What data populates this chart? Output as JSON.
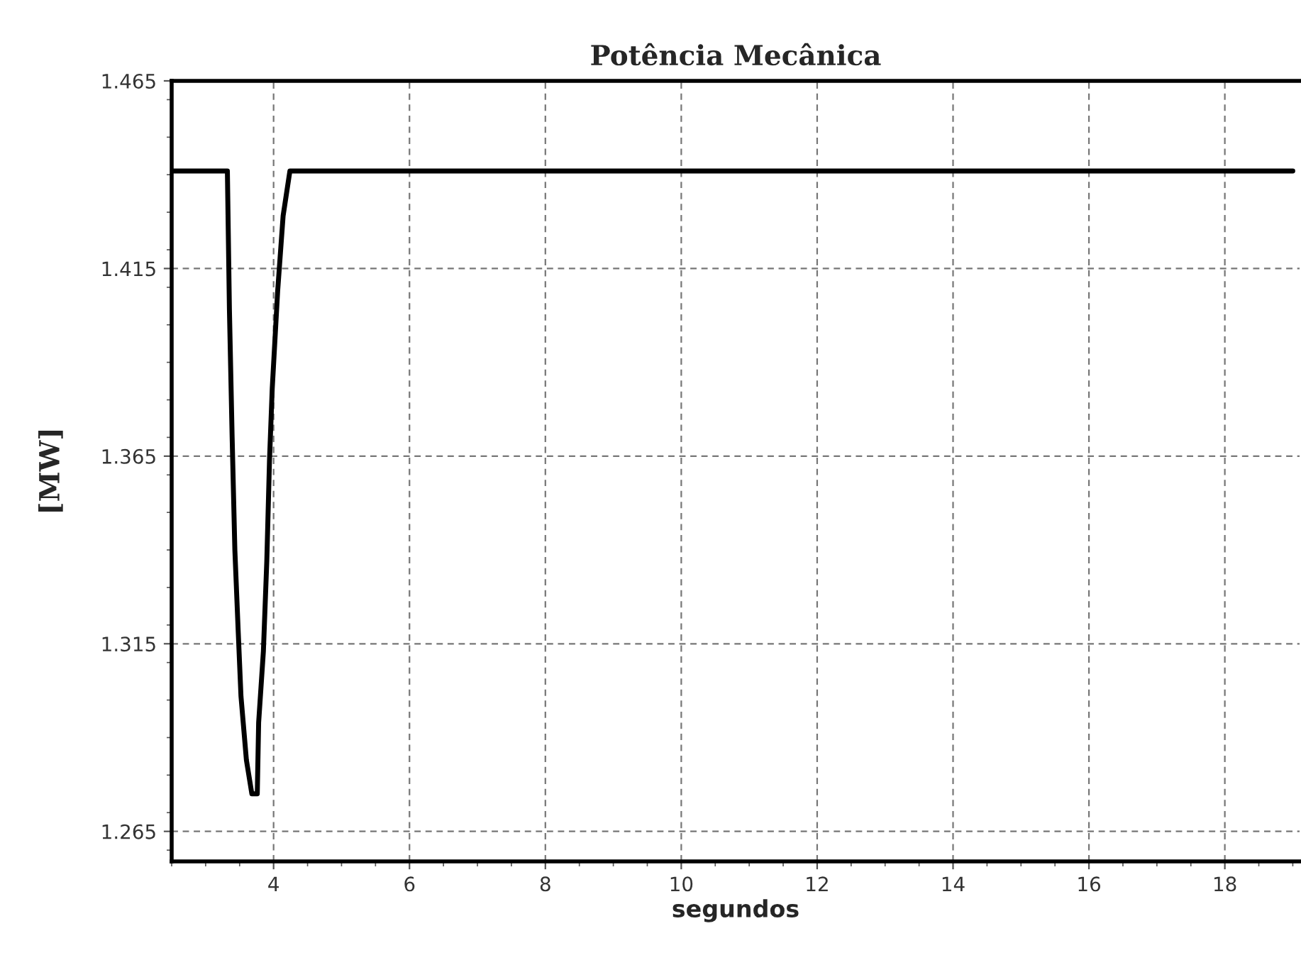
{
  "chart_data": {
    "type": "line",
    "title": "Potência Mecânica",
    "xlabel": "segundos",
    "ylabel": "[MW]",
    "series": [
      {
        "color": "#000000",
        "x": [
          2.5,
          3.32,
          3.35,
          3.39,
          3.43,
          3.48,
          3.52,
          3.6,
          3.68,
          3.76,
          3.78,
          3.85,
          3.9,
          3.94,
          3.98,
          4.06,
          4.14,
          4.24,
          19.0
        ],
        "values": [
          1.441,
          1.441,
          1.404,
          1.37,
          1.34,
          1.318,
          1.301,
          1.284,
          1.275,
          1.275,
          1.294,
          1.313,
          1.337,
          1.364,
          1.383,
          1.409,
          1.429,
          1.441,
          1.441
        ]
      }
    ],
    "xlim": [
      2.5,
      19.1
    ],
    "xticks": [
      4,
      6,
      8,
      10,
      12,
      14,
      16,
      18
    ],
    "ylim": [
      1.257,
      1.465
    ],
    "yticks": [
      1.265,
      1.315,
      1.365,
      1.415,
      1.465
    ],
    "grid": true,
    "line_style": "solid",
    "marker": "none"
  }
}
